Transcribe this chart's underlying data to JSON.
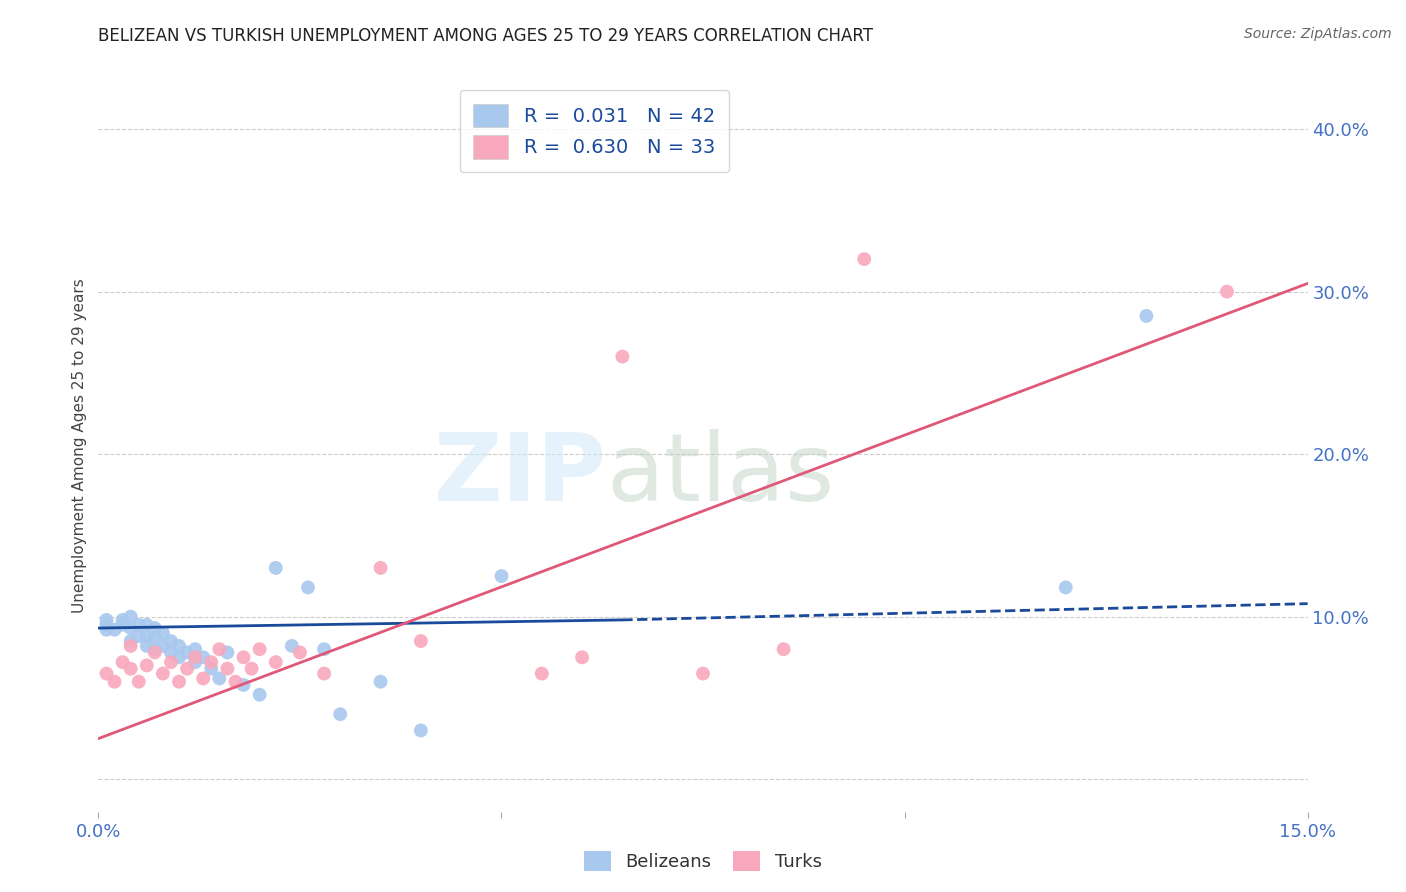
{
  "title": "BELIZEAN VS TURKISH UNEMPLOYMENT AMONG AGES 25 TO 29 YEARS CORRELATION CHART",
  "source": "Source: ZipAtlas.com",
  "tick_color": "#4472c4",
  "ylabel": "Unemployment Among Ages 25 to 29 years",
  "xlim": [
    0.0,
    0.15
  ],
  "ylim": [
    -0.02,
    0.43
  ],
  "x_ticks": [
    0.0,
    0.05,
    0.1,
    0.15
  ],
  "x_tick_labels": [
    "0.0%",
    "",
    "",
    "15.0%"
  ],
  "y_ticks_right": [
    0.0,
    0.1,
    0.2,
    0.3,
    0.4
  ],
  "y_tick_labels_right": [
    "",
    "10.0%",
    "20.0%",
    "30.0%",
    "40.0%"
  ],
  "belizean_color": "#a8c8ee",
  "turkish_color": "#f8a8bc",
  "belizean_line_color": "#1a4a9a",
  "turkish_line_color": "#e05878",
  "legend_label1": "R =  0.031   N = 42",
  "legend_label2": "R =  0.630   N = 33",
  "watermark_zip": "ZIP",
  "watermark_atlas": "atlas",
  "belizean_x": [
    0.001,
    0.001,
    0.001,
    0.002,
    0.003,
    0.003,
    0.004,
    0.004,
    0.004,
    0.005,
    0.005,
    0.006,
    0.006,
    0.006,
    0.007,
    0.007,
    0.007,
    0.008,
    0.008,
    0.009,
    0.009,
    0.01,
    0.01,
    0.011,
    0.012,
    0.012,
    0.013,
    0.014,
    0.015,
    0.016,
    0.018,
    0.02,
    0.022,
    0.024,
    0.026,
    0.028,
    0.03,
    0.035,
    0.04,
    0.05,
    0.12,
    0.13
  ],
  "belizean_y": [
    0.092,
    0.095,
    0.098,
    0.092,
    0.095,
    0.098,
    0.085,
    0.093,
    0.1,
    0.088,
    0.095,
    0.082,
    0.088,
    0.095,
    0.08,
    0.087,
    0.093,
    0.082,
    0.09,
    0.078,
    0.085,
    0.075,
    0.082,
    0.078,
    0.072,
    0.08,
    0.075,
    0.068,
    0.062,
    0.078,
    0.058,
    0.052,
    0.13,
    0.082,
    0.118,
    0.08,
    0.04,
    0.06,
    0.03,
    0.125,
    0.118,
    0.285
  ],
  "turkish_x": [
    0.001,
    0.002,
    0.003,
    0.004,
    0.004,
    0.005,
    0.006,
    0.007,
    0.008,
    0.009,
    0.01,
    0.011,
    0.012,
    0.013,
    0.014,
    0.015,
    0.016,
    0.017,
    0.018,
    0.019,
    0.02,
    0.022,
    0.025,
    0.028,
    0.035,
    0.04,
    0.055,
    0.06,
    0.065,
    0.075,
    0.085,
    0.095,
    0.14
  ],
  "turkish_y": [
    0.065,
    0.06,
    0.072,
    0.068,
    0.082,
    0.06,
    0.07,
    0.078,
    0.065,
    0.072,
    0.06,
    0.068,
    0.075,
    0.062,
    0.072,
    0.08,
    0.068,
    0.06,
    0.075,
    0.068,
    0.08,
    0.072,
    0.078,
    0.065,
    0.13,
    0.085,
    0.065,
    0.075,
    0.26,
    0.065,
    0.08,
    0.32,
    0.3
  ],
  "bel_trend_x0": 0.0,
  "bel_trend_x1": 0.065,
  "bel_trend_x2": 0.15,
  "bel_trend_y0": 0.093,
  "bel_trend_y1": 0.098,
  "bel_trend_y2": 0.108,
  "turk_trend_x0": 0.0,
  "turk_trend_x1": 0.15,
  "turk_trend_y0": 0.025,
  "turk_trend_y1": 0.305,
  "grid_color": "#cccccc",
  "background_color": "#ffffff"
}
